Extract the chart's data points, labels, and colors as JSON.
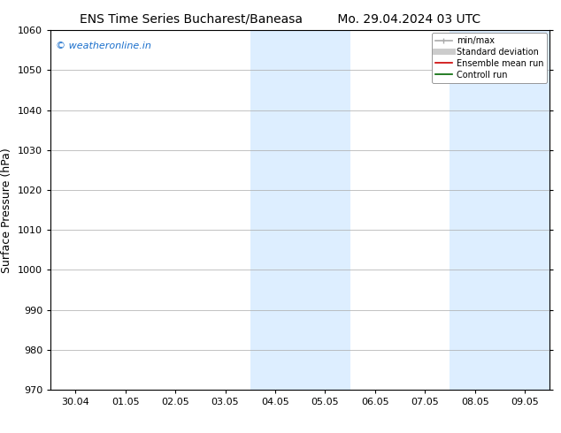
{
  "title_left": "ENS Time Series Bucharest/Baneasa",
  "title_right": "Mo. 29.04.2024 03 UTC",
  "ylabel": "Surface Pressure (hPa)",
  "ylim": [
    970,
    1060
  ],
  "yticks": [
    970,
    980,
    990,
    1000,
    1010,
    1020,
    1030,
    1040,
    1050,
    1060
  ],
  "xtick_labels": [
    "30.04",
    "01.05",
    "02.05",
    "03.05",
    "04.05",
    "05.05",
    "06.05",
    "07.05",
    "08.05",
    "09.05"
  ],
  "x_values": [
    0,
    1,
    2,
    3,
    4,
    5,
    6,
    7,
    8,
    9
  ],
  "xlim": [
    -0.5,
    9.5
  ],
  "shaded_bands": [
    {
      "x_start": 3.5,
      "x_end": 5.5,
      "color": "#ddeeff"
    },
    {
      "x_start": 7.5,
      "x_end": 9.5,
      "color": "#ddeeff"
    }
  ],
  "watermark_text": "© weatheronline.in",
  "watermark_color": "#1a6fcc",
  "legend_items": [
    {
      "label": "min/max",
      "color": "#aaaaaa",
      "lw": 1.2,
      "linestyle": "-",
      "marker": true
    },
    {
      "label": "Standard deviation",
      "color": "#cccccc",
      "lw": 5,
      "linestyle": "-"
    },
    {
      "label": "Ensemble mean run",
      "color": "#cc0000",
      "lw": 1.2,
      "linestyle": "-"
    },
    {
      "label": "Controll run",
      "color": "#006600",
      "lw": 1.2,
      "linestyle": "-"
    }
  ],
  "background_color": "#ffffff",
  "grid_color": "#aaaaaa",
  "title_fontsize": 10,
  "tick_fontsize": 8,
  "ylabel_fontsize": 9,
  "watermark_fontsize": 8,
  "legend_fontsize": 7
}
